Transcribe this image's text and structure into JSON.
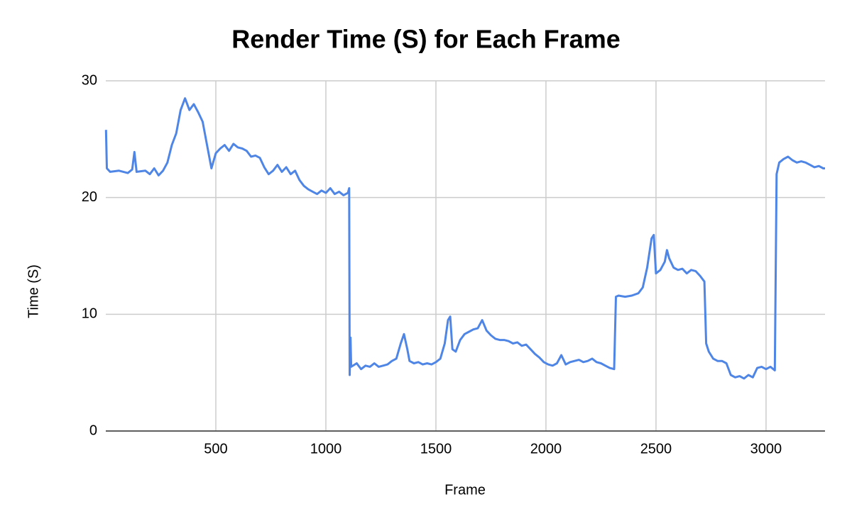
{
  "chart_data": {
    "type": "line",
    "title": "Render Time (S) for Each Frame",
    "x_label": "Frame",
    "y_label": "Time (S)",
    "color": "#4f86e6",
    "grid": true,
    "xlim": [
      0,
      3268
    ],
    "ylim": [
      0,
      30
    ],
    "xticks": [
      500,
      1000,
      1500,
      2000,
      2500,
      3000
    ],
    "yticks": [
      0,
      10,
      20,
      30
    ],
    "x": [
      1,
      5,
      20,
      60,
      100,
      120,
      130,
      140,
      180,
      200,
      220,
      240,
      260,
      280,
      300,
      320,
      340,
      360,
      380,
      400,
      420,
      440,
      460,
      480,
      500,
      520,
      540,
      560,
      580,
      600,
      620,
      640,
      660,
      680,
      700,
      720,
      740,
      760,
      780,
      800,
      820,
      840,
      860,
      880,
      900,
      920,
      940,
      960,
      980,
      1000,
      1020,
      1040,
      1060,
      1080,
      1100,
      1106,
      1108,
      1112,
      1115,
      1140,
      1160,
      1180,
      1200,
      1220,
      1240,
      1260,
      1280,
      1300,
      1320,
      1340,
      1355,
      1370,
      1380,
      1400,
      1420,
      1440,
      1460,
      1480,
      1500,
      1520,
      1540,
      1555,
      1565,
      1575,
      1590,
      1610,
      1630,
      1650,
      1670,
      1690,
      1710,
      1730,
      1750,
      1770,
      1790,
      1810,
      1830,
      1850,
      1870,
      1890,
      1910,
      1930,
      1950,
      1970,
      1990,
      2010,
      2030,
      2050,
      2070,
      2090,
      2110,
      2130,
      2150,
      2170,
      2190,
      2210,
      2230,
      2250,
      2270,
      2290,
      2310,
      2318,
      2330,
      2360,
      2390,
      2420,
      2440,
      2460,
      2480,
      2490,
      2500,
      2520,
      2540,
      2550,
      2560,
      2580,
      2600,
      2620,
      2640,
      2660,
      2680,
      2700,
      2720,
      2728,
      2740,
      2760,
      2780,
      2800,
      2820,
      2840,
      2860,
      2880,
      2900,
      2920,
      2940,
      2960,
      2980,
      3000,
      3020,
      3040,
      3048,
      3060,
      3080,
      3100,
      3120,
      3140,
      3160,
      3180,
      3200,
      3220,
      3240,
      3260,
      3268
    ],
    "values": [
      25.8,
      22.5,
      22.2,
      22.3,
      22.1,
      22.4,
      23.9,
      22.2,
      22.3,
      22.0,
      22.5,
      21.9,
      22.3,
      23.0,
      24.5,
      25.5,
      27.5,
      28.5,
      27.5,
      28.0,
      27.3,
      26.5,
      24.5,
      22.5,
      23.8,
      24.2,
      24.5,
      24.0,
      24.6,
      24.3,
      24.2,
      24.0,
      23.5,
      23.6,
      23.4,
      22.6,
      22.0,
      22.3,
      22.8,
      22.2,
      22.6,
      22.0,
      22.3,
      21.5,
      21.0,
      20.7,
      20.5,
      20.3,
      20.6,
      20.4,
      20.8,
      20.3,
      20.5,
      20.2,
      20.4,
      20.8,
      4.8,
      8.0,
      5.5,
      5.8,
      5.3,
      5.6,
      5.5,
      5.8,
      5.5,
      5.6,
      5.7,
      6.0,
      6.2,
      7.5,
      8.3,
      7.0,
      6.0,
      5.8,
      5.9,
      5.7,
      5.8,
      5.7,
      5.9,
      6.2,
      7.5,
      9.5,
      9.8,
      7.0,
      6.8,
      7.8,
      8.3,
      8.5,
      8.7,
      8.8,
      9.5,
      8.6,
      8.2,
      7.9,
      7.8,
      7.8,
      7.7,
      7.5,
      7.6,
      7.3,
      7.4,
      7.0,
      6.6,
      6.3,
      5.9,
      5.7,
      5.6,
      5.8,
      6.5,
      5.7,
      5.9,
      6.0,
      6.1,
      5.9,
      6.0,
      6.2,
      5.9,
      5.8,
      5.6,
      5.4,
      5.3,
      11.5,
      11.6,
      11.5,
      11.6,
      11.8,
      12.3,
      14.0,
      16.5,
      16.8,
      13.5,
      13.8,
      14.5,
      15.5,
      14.8,
      14.0,
      13.8,
      13.9,
      13.5,
      13.8,
      13.7,
      13.3,
      12.8,
      7.5,
      6.8,
      6.2,
      6.0,
      6.0,
      5.8,
      4.8,
      4.6,
      4.7,
      4.5,
      4.8,
      4.6,
      5.4,
      5.5,
      5.3,
      5.5,
      5.2,
      22.0,
      23.0,
      23.3,
      23.5,
      23.2,
      23.0,
      23.1,
      23.0,
      22.8,
      22.6,
      22.7,
      22.5,
      22.5
    ]
  }
}
